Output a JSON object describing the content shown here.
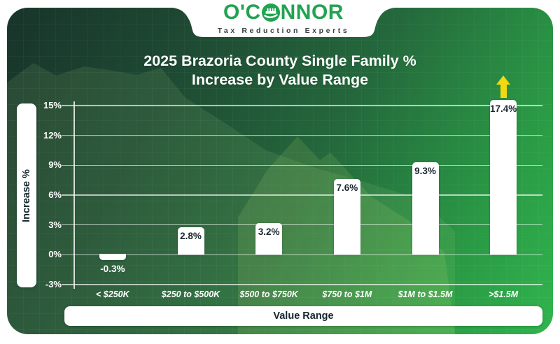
{
  "logo": {
    "name": "O'CONNOR",
    "name_prefix": "O'C",
    "name_suffix": "NNOR",
    "tagline": "Tax Reduction Experts",
    "brand_color": "#22a351"
  },
  "chart_data": {
    "type": "bar",
    "title": "2025 Brazoria County Single Family % Increase by Value Range",
    "title_line1": "2025 Brazoria County Single Family %",
    "title_line2": "Increase by Value Range",
    "categories": [
      "< $250K",
      "$250 to $500K",
      "$500 to $750K",
      "$750 to $1M",
      "$1M to $1.5M",
      ">$1.5M"
    ],
    "values": [
      -0.3,
      2.8,
      3.2,
      7.6,
      9.3,
      17.4
    ],
    "value_labels": [
      "-0.3%",
      "2.8%",
      "3.2%",
      "7.6%",
      "9.3%",
      "17.4%"
    ],
    "xlabel": "Value Range",
    "ylabel": "Increase %",
    "ylim": [
      -3,
      15
    ],
    "ytick_step": 3,
    "yticks": [
      "15%",
      "12%",
      "9%",
      "6%",
      "3%",
      "0%",
      "-3%"
    ],
    "grid": true,
    "legend": false,
    "bar_color": "#ffffff",
    "overflow_indicator": {
      "category": ">$1.5M",
      "shape": "up-arrow",
      "color": "#f2d911"
    }
  },
  "colors": {
    "background_dark": "#18342a",
    "background_bright": "#31b44e",
    "gridline": "rgba(255,255,255,0.65)",
    "bar": "#ffffff",
    "value_text": "#18262e",
    "axis_text": "#ffffff",
    "arrow_yellow": "#f2d911"
  }
}
